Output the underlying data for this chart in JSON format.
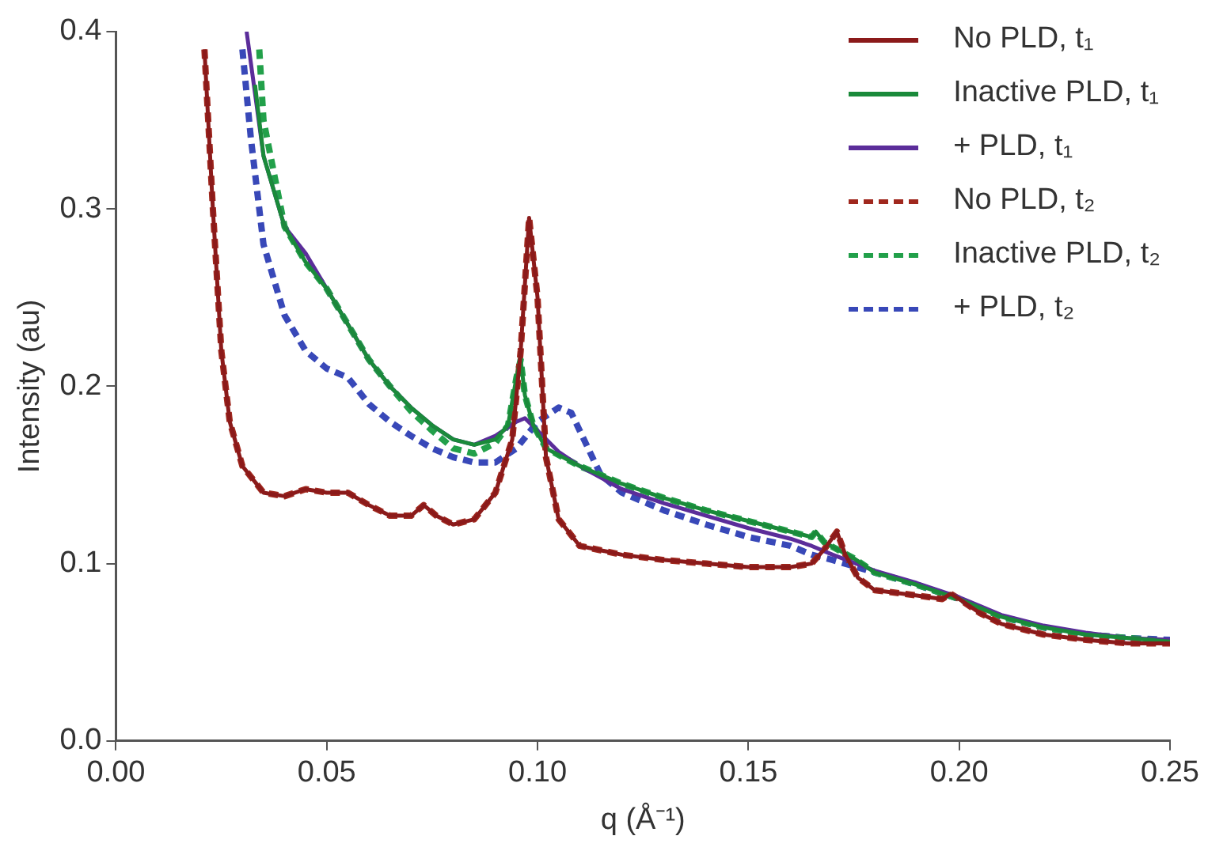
{
  "chart_data": {
    "type": "line",
    "xlabel": "q (Å⁻¹)",
    "ylabel": "Intensity (au)",
    "xlim": [
      0,
      0.25
    ],
    "ylim": [
      0,
      0.4
    ],
    "xticks": [
      {
        "value": 0,
        "label": "0.00"
      },
      {
        "value": 0.05,
        "label": "0.05"
      },
      {
        "value": 0.1,
        "label": "0.10"
      },
      {
        "value": 0.15,
        "label": "0.15"
      },
      {
        "value": 0.2,
        "label": "0.20"
      },
      {
        "value": 0.25,
        "label": "0.25"
      }
    ],
    "yticks": [
      {
        "value": 0,
        "label": "0.0"
      },
      0.1,
      0.2,
      0.3,
      0.4
    ],
    "grid": false,
    "legend": "top right",
    "marker": "none",
    "series": [
      {
        "name": "No PLD, t₁",
        "color": "#8b1a1a",
        "line_style": "solid",
        "x": [
          0.021,
          0.023,
          0.025,
          0.027,
          0.03,
          0.035,
          0.04,
          0.045,
          0.05,
          0.055,
          0.06,
          0.065,
          0.07,
          0.073,
          0.076,
          0.08,
          0.085,
          0.09,
          0.094,
          0.096,
          0.098,
          0.1,
          0.102,
          0.105,
          0.11,
          0.12,
          0.13,
          0.14,
          0.15,
          0.16,
          0.165,
          0.168,
          0.171,
          0.173,
          0.176,
          0.18,
          0.19,
          0.196,
          0.198,
          0.2,
          0.205,
          0.21,
          0.22,
          0.23,
          0.24,
          0.25
        ],
        "values": [
          0.39,
          0.3,
          0.22,
          0.18,
          0.155,
          0.14,
          0.138,
          0.142,
          0.14,
          0.14,
          0.133,
          0.127,
          0.127,
          0.133,
          0.127,
          0.122,
          0.125,
          0.14,
          0.17,
          0.22,
          0.295,
          0.25,
          0.16,
          0.125,
          0.11,
          0.105,
          0.102,
          0.1,
          0.098,
          0.098,
          0.1,
          0.108,
          0.118,
          0.105,
          0.092,
          0.085,
          0.082,
          0.08,
          0.083,
          0.08,
          0.072,
          0.066,
          0.06,
          0.057,
          0.055,
          0.055
        ]
      },
      {
        "name": "Inactive PLD, t₁",
        "color": "#1a8a3a",
        "line_style": "solid",
        "x": [
          0.033,
          0.035,
          0.04,
          0.045,
          0.05,
          0.055,
          0.06,
          0.065,
          0.07,
          0.075,
          0.08,
          0.085,
          0.09,
          0.093,
          0.095,
          0.096,
          0.097,
          0.099,
          0.102,
          0.11,
          0.12,
          0.13,
          0.14,
          0.15,
          0.16,
          0.165,
          0.166,
          0.168,
          0.175,
          0.18,
          0.19,
          0.2,
          0.21,
          0.22,
          0.23,
          0.24,
          0.25
        ],
        "values": [
          0.37,
          0.33,
          0.29,
          0.27,
          0.255,
          0.235,
          0.215,
          0.2,
          0.188,
          0.178,
          0.17,
          0.167,
          0.17,
          0.178,
          0.205,
          0.215,
          0.195,
          0.178,
          0.165,
          0.155,
          0.145,
          0.137,
          0.13,
          0.124,
          0.118,
          0.115,
          0.118,
          0.112,
          0.103,
          0.095,
          0.088,
          0.08,
          0.07,
          0.064,
          0.06,
          0.058,
          0.056
        ]
      },
      {
        "name": "+ PLD, t₁",
        "color": "#5b2d9a",
        "line_style": "solid",
        "x": [
          0.031,
          0.035,
          0.04,
          0.045,
          0.05,
          0.055,
          0.06,
          0.065,
          0.07,
          0.075,
          0.08,
          0.085,
          0.09,
          0.095,
          0.097,
          0.1,
          0.105,
          0.11,
          0.12,
          0.13,
          0.14,
          0.15,
          0.16,
          0.165,
          0.17,
          0.18,
          0.19,
          0.2,
          0.21,
          0.22,
          0.23,
          0.24,
          0.25
        ],
        "values": [
          0.4,
          0.33,
          0.29,
          0.275,
          0.255,
          0.235,
          0.215,
          0.2,
          0.188,
          0.178,
          0.17,
          0.167,
          0.172,
          0.18,
          0.182,
          0.175,
          0.163,
          0.155,
          0.142,
          0.134,
          0.127,
          0.12,
          0.114,
          0.11,
          0.105,
          0.096,
          0.089,
          0.081,
          0.071,
          0.065,
          0.061,
          0.058,
          0.057
        ]
      },
      {
        "name": "No PLD, t₂",
        "color": "#a0281e",
        "line_style": "dashed",
        "x": [
          0.021,
          0.023,
          0.025,
          0.027,
          0.03,
          0.035,
          0.04,
          0.045,
          0.05,
          0.055,
          0.06,
          0.065,
          0.07,
          0.073,
          0.076,
          0.08,
          0.085,
          0.09,
          0.094,
          0.096,
          0.098,
          0.1,
          0.102,
          0.105,
          0.11,
          0.12,
          0.13,
          0.14,
          0.15,
          0.16,
          0.165,
          0.168,
          0.171,
          0.173,
          0.176,
          0.18,
          0.19,
          0.196,
          0.198,
          0.2,
          0.205,
          0.21,
          0.22,
          0.23,
          0.24,
          0.25
        ],
        "values": [
          0.39,
          0.3,
          0.22,
          0.18,
          0.155,
          0.14,
          0.138,
          0.142,
          0.14,
          0.14,
          0.133,
          0.127,
          0.127,
          0.133,
          0.127,
          0.122,
          0.125,
          0.14,
          0.17,
          0.22,
          0.295,
          0.25,
          0.16,
          0.125,
          0.11,
          0.105,
          0.102,
          0.1,
          0.098,
          0.098,
          0.1,
          0.108,
          0.118,
          0.105,
          0.092,
          0.085,
          0.082,
          0.08,
          0.083,
          0.08,
          0.072,
          0.066,
          0.06,
          0.057,
          0.055,
          0.055
        ]
      },
      {
        "name": "Inactive PLD, t₂",
        "color": "#22a04a",
        "line_style": "dashed",
        "x": [
          0.034,
          0.035,
          0.04,
          0.045,
          0.05,
          0.055,
          0.06,
          0.065,
          0.07,
          0.075,
          0.08,
          0.085,
          0.09,
          0.093,
          0.095,
          0.096,
          0.097,
          0.099,
          0.102,
          0.11,
          0.12,
          0.13,
          0.14,
          0.15,
          0.16,
          0.165,
          0.166,
          0.168,
          0.175,
          0.18,
          0.19,
          0.2,
          0.21,
          0.22,
          0.23,
          0.24,
          0.25
        ],
        "values": [
          0.39,
          0.35,
          0.29,
          0.27,
          0.255,
          0.235,
          0.215,
          0.2,
          0.186,
          0.175,
          0.165,
          0.162,
          0.168,
          0.178,
          0.205,
          0.215,
          0.195,
          0.178,
          0.165,
          0.155,
          0.145,
          0.137,
          0.13,
          0.124,
          0.118,
          0.115,
          0.118,
          0.112,
          0.103,
          0.095,
          0.088,
          0.08,
          0.07,
          0.064,
          0.06,
          0.058,
          0.056
        ]
      },
      {
        "name": "+ PLD, t₂",
        "color": "#3848b8",
        "line_style": "dashed",
        "x": [
          0.03,
          0.032,
          0.035,
          0.04,
          0.045,
          0.05,
          0.055,
          0.06,
          0.065,
          0.07,
          0.075,
          0.08,
          0.085,
          0.09,
          0.095,
          0.1,
          0.105,
          0.108,
          0.11,
          0.115,
          0.12,
          0.13,
          0.14,
          0.15,
          0.16,
          0.165,
          0.17,
          0.18,
          0.19,
          0.2,
          0.21,
          0.22,
          0.23,
          0.24,
          0.25
        ],
        "values": [
          0.39,
          0.34,
          0.28,
          0.24,
          0.22,
          0.21,
          0.205,
          0.19,
          0.18,
          0.172,
          0.165,
          0.16,
          0.157,
          0.157,
          0.165,
          0.18,
          0.188,
          0.185,
          0.175,
          0.15,
          0.14,
          0.13,
          0.122,
          0.115,
          0.11,
          0.105,
          0.102,
          0.095,
          0.088,
          0.08,
          0.07,
          0.064,
          0.06,
          0.058,
          0.057
        ]
      }
    ]
  }
}
